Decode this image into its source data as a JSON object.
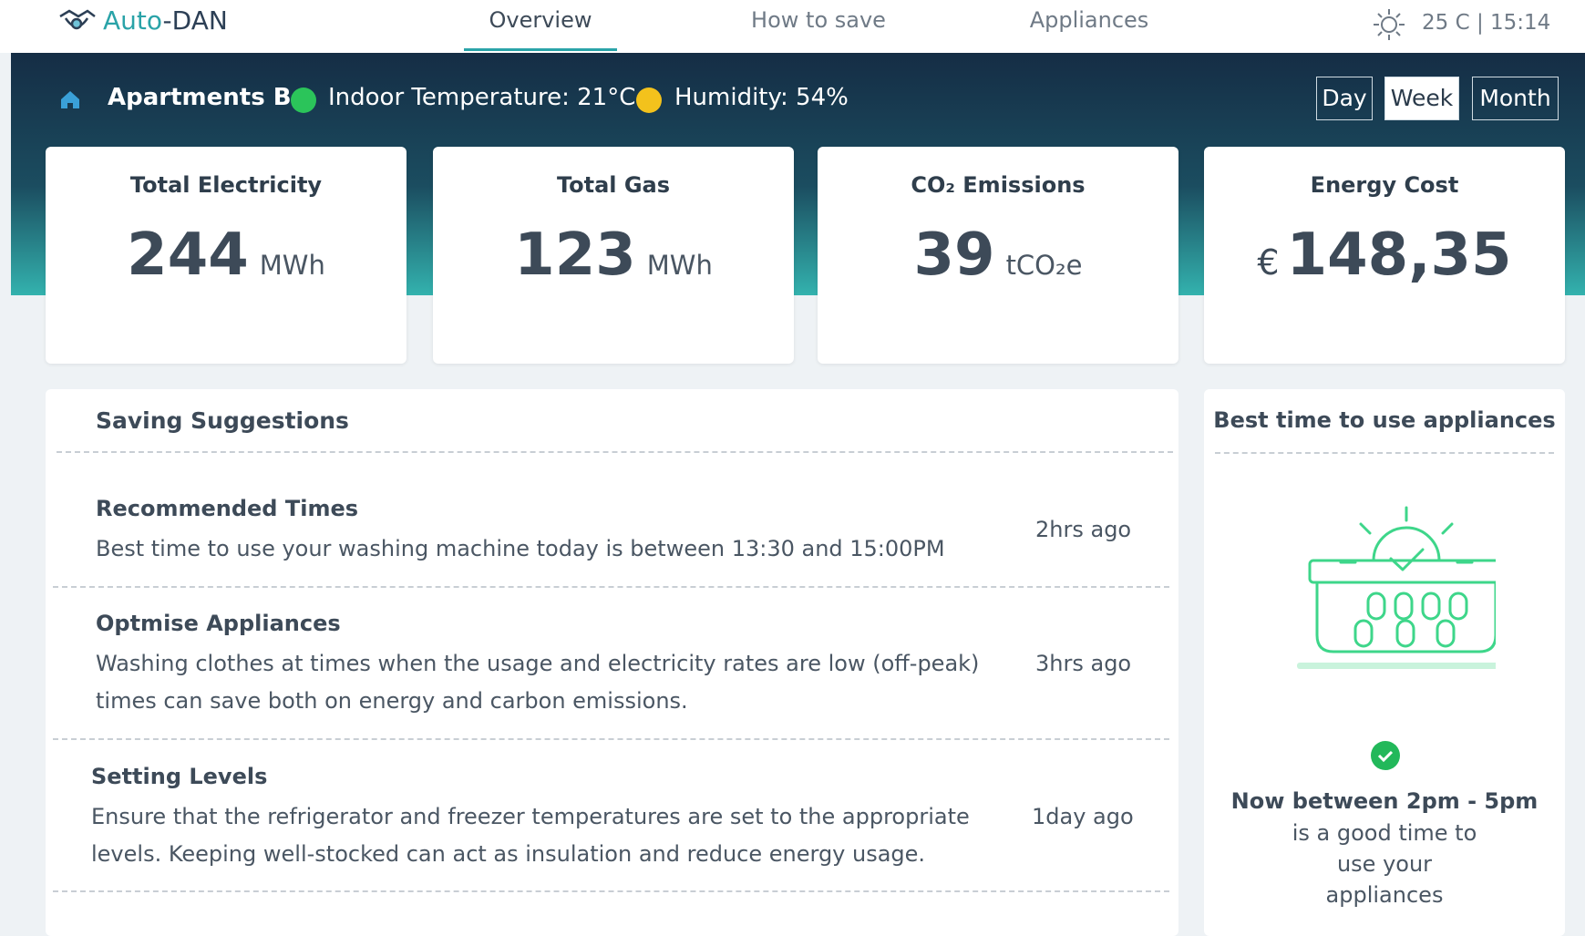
{
  "brand": {
    "prefix": "Auto",
    "suffix": "-DAN"
  },
  "nav": [
    "Overview",
    "How to save",
    "Appliances"
  ],
  "weather": "25 C | 15:14",
  "location": "Apartments B",
  "status": [
    "Indoor Temperature: 21°C",
    "Humidity: 54%"
  ],
  "periods": [
    "Day",
    "Week",
    "Month"
  ],
  "cards": [
    {
      "title": "Total Electricity",
      "value": "244",
      "unit": "MWh"
    },
    {
      "title": "Total Gas",
      "value": "123",
      "unit": "MWh"
    },
    {
      "title": "CO₂ Emissions",
      "value": "39",
      "unit": "tCO₂e"
    },
    {
      "title": "Energy Cost",
      "prefix": "€",
      "value": "148,35"
    }
  ],
  "suggestions": {
    "title": "Saving Suggestions",
    "items": [
      {
        "title": "Recommended Times",
        "text": "Best time to use your washing machine today is between 13:30 and 15:00PM",
        "time": "2hrs ago"
      },
      {
        "title": "Optmise Appliances",
        "text": "Washing clothes at times when the usage and electricity rates are low (off-peak) times can save both on energy and carbon emissions.",
        "time": "3hrs ago"
      },
      {
        "title": "Setting Levels",
        "text": "Ensure that the refrigerator and freezer temperatures are set to the appropriate levels. Keeping well-stocked can act as insulation and reduce energy usage.",
        "time": "1day ago"
      }
    ]
  },
  "best": {
    "title": "Best time to use appliances",
    "status": "Now between 2pm - 5pm",
    "text": "is a good time to use your appliances"
  }
}
